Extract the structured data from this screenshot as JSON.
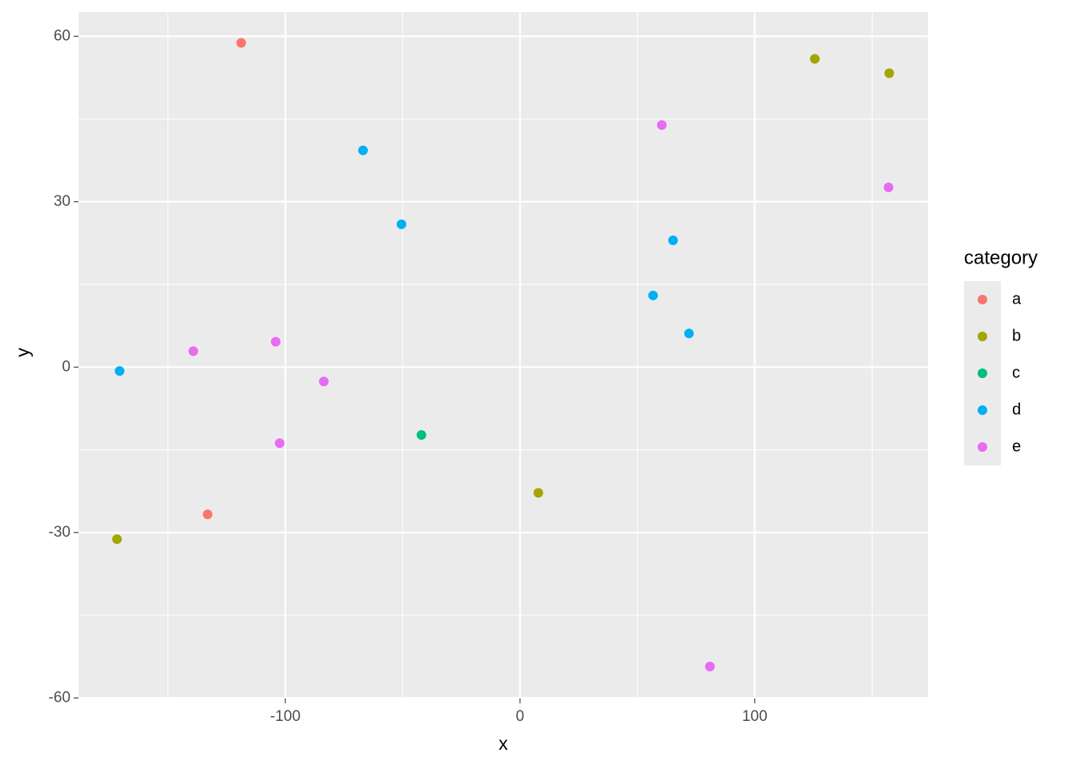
{
  "chart_data": {
    "type": "scatter",
    "x_label": "x",
    "y_label": "y",
    "legend_title": "category",
    "xlim": [
      -188.1,
      173.8
    ],
    "ylim": [
      -60.1,
      64.4
    ],
    "xticks": [
      -100,
      0,
      100
    ],
    "yticks": [
      -60,
      -30,
      0,
      30,
      60
    ],
    "grid": true,
    "legend_position": "right",
    "series": [
      {
        "name": "a",
        "color": "#f8766d",
        "x": [
          -118.8,
          -133.1
        ],
        "values": [
          58.8,
          -26.7
        ]
      },
      {
        "name": "b",
        "color": "#a3a500",
        "x": [
          125.6,
          157.3,
          7.8,
          -171.7
        ],
        "values": [
          55.9,
          53.3,
          -22.8,
          -31.2
        ]
      },
      {
        "name": "c",
        "color": "#00bf7d",
        "x": [
          -42.0
        ],
        "values": [
          -12.3
        ]
      },
      {
        "name": "d",
        "color": "#00b0f6",
        "x": [
          -66.9,
          -50.5,
          65.2,
          56.7,
          72.0,
          -170.6
        ],
        "values": [
          39.3,
          25.9,
          23.0,
          13.0,
          6.1,
          -0.7
        ]
      },
      {
        "name": "e",
        "color": "#e76bf3",
        "x": [
          60.4,
          157.0,
          -139.2,
          -104.1,
          -83.6,
          -102.4,
          80.9
        ],
        "values": [
          43.9,
          32.6,
          2.9,
          4.6,
          -2.6,
          -13.8,
          -54.3
        ]
      }
    ]
  }
}
